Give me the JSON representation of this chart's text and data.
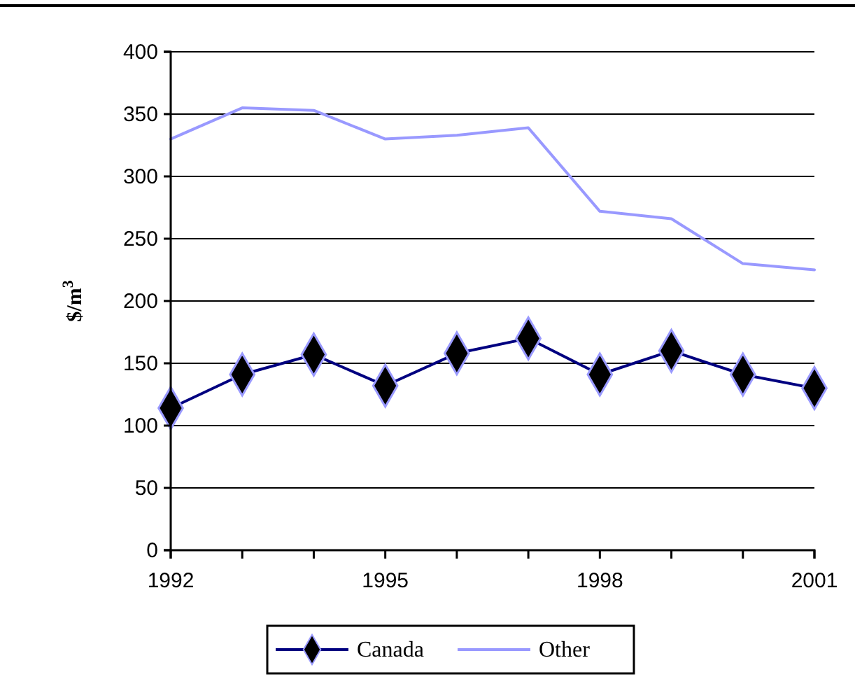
{
  "chart_data": {
    "type": "line",
    "ylabel": "$/m$^{3}$",
    "x": [
      1992,
      1993,
      1994,
      1995,
      1996,
      1997,
      1998,
      1999,
      2000,
      2001
    ],
    "series": [
      {
        "name": "Canada",
        "color": "#000080",
        "marker": "diamond",
        "values": [
          114,
          141,
          157,
          132,
          158,
          170,
          141,
          160,
          141,
          130
        ]
      },
      {
        "name": "Other",
        "color": "#9999ff",
        "marker": "none",
        "values": [
          330,
          355,
          353,
          330,
          333,
          339,
          272,
          266,
          230,
          225
        ]
      }
    ],
    "xlim": [
      1992,
      2001
    ],
    "xticks": [
      1992,
      {
        "value": 1993,
        "label": null
      },
      {
        "value": 1994,
        "label": null
      },
      1995,
      {
        "value": 1996,
        "label": null
      },
      {
        "value": 1997,
        "label": null
      },
      1998,
      {
        "value": 1999,
        "label": null
      },
      {
        "value": 2000,
        "label": null
      },
      2001
    ],
    "ylim": [
      0,
      400
    ],
    "yticks": [
      0,
      50,
      100,
      150,
      200,
      250,
      300,
      350,
      400
    ],
    "grid": "y",
    "legend": "bottom"
  }
}
